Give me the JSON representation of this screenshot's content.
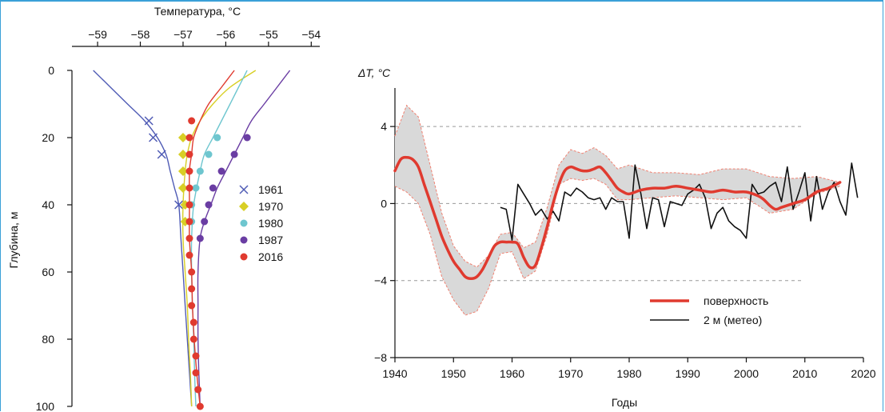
{
  "chart_data": [
    {
      "type": "scatter",
      "title": "",
      "xlabel": "Температура, °C",
      "ylabel": "Глубина, м",
      "xlim": [
        -59.6,
        -53.8
      ],
      "ylim": [
        0,
        100
      ],
      "xticks": [
        -59,
        -58,
        -57,
        -56,
        -55,
        -54
      ],
      "yticks": [
        0,
        20,
        40,
        60,
        80,
        100
      ],
      "legend_position": "right",
      "series": [
        {
          "name": "1961",
          "color": "#4f5bb5",
          "marker": "x",
          "points": [
            [
              -57.8,
              15
            ],
            [
              -57.7,
              20
            ],
            [
              -57.5,
              25
            ],
            [
              -57.1,
              40
            ]
          ],
          "curve": [
            [
              -59.1,
              0
            ],
            [
              -58.7,
              5
            ],
            [
              -58.3,
              10
            ],
            [
              -57.9,
              15
            ],
            [
              -57.6,
              20
            ],
            [
              -57.4,
              25
            ],
            [
              -57.3,
              30
            ],
            [
              -57.2,
              35
            ],
            [
              -57.1,
              40
            ],
            [
              -57.05,
              50
            ],
            [
              -57.0,
              60
            ],
            [
              -56.95,
              70
            ],
            [
              -56.9,
              80
            ],
            [
              -56.85,
              90
            ],
            [
              -56.8,
              100
            ]
          ]
        },
        {
          "name": "1970",
          "color": "#d8cf25",
          "marker": "diamond",
          "points": [
            [
              -57.0,
              20
            ],
            [
              -57.0,
              25
            ],
            [
              -57.0,
              30
            ],
            [
              -57.0,
              35
            ],
            [
              -56.95,
              40
            ],
            [
              -56.95,
              45
            ]
          ],
          "curve": [
            [
              -55.3,
              0
            ],
            [
              -55.9,
              5
            ],
            [
              -56.3,
              10
            ],
            [
              -56.6,
              15
            ],
            [
              -56.8,
              20
            ],
            [
              -56.9,
              25
            ],
            [
              -56.95,
              30
            ],
            [
              -57.0,
              40
            ],
            [
              -57.0,
              50
            ],
            [
              -56.95,
              60
            ],
            [
              -56.9,
              70
            ],
            [
              -56.87,
              80
            ],
            [
              -56.83,
              90
            ],
            [
              -56.8,
              100
            ]
          ]
        },
        {
          "name": "1980",
          "color": "#6ec6cf",
          "marker": "circle",
          "points": [
            [
              -56.2,
              20
            ],
            [
              -56.4,
              25
            ],
            [
              -56.6,
              30
            ],
            [
              -56.7,
              35
            ],
            [
              -56.8,
              40
            ],
            [
              -56.8,
              45
            ]
          ],
          "curve": [
            [
              -55.5,
              0
            ],
            [
              -55.7,
              5
            ],
            [
              -55.9,
              10
            ],
            [
              -56.1,
              15
            ],
            [
              -56.3,
              20
            ],
            [
              -56.5,
              25
            ],
            [
              -56.6,
              30
            ],
            [
              -56.75,
              40
            ],
            [
              -56.8,
              50
            ],
            [
              -56.8,
              60
            ],
            [
              -56.78,
              70
            ],
            [
              -56.75,
              80
            ],
            [
              -56.73,
              90
            ],
            [
              -56.7,
              100
            ]
          ]
        },
        {
          "name": "1987",
          "color": "#6a3da3",
          "marker": "circle",
          "points": [
            [
              -55.5,
              20
            ],
            [
              -55.8,
              25
            ],
            [
              -56.1,
              30
            ],
            [
              -56.3,
              35
            ],
            [
              -56.4,
              40
            ],
            [
              -56.5,
              45
            ],
            [
              -56.6,
              50
            ]
          ],
          "curve": [
            [
              -54.5,
              0
            ],
            [
              -54.8,
              5
            ],
            [
              -55.1,
              10
            ],
            [
              -55.4,
              15
            ],
            [
              -55.6,
              20
            ],
            [
              -55.8,
              25
            ],
            [
              -56.0,
              30
            ],
            [
              -56.2,
              35
            ],
            [
              -56.35,
              40
            ],
            [
              -56.5,
              45
            ],
            [
              -56.6,
              50
            ],
            [
              -56.65,
              60
            ],
            [
              -56.65,
              70
            ],
            [
              -56.65,
              80
            ],
            [
              -56.63,
              90
            ],
            [
              -56.6,
              100
            ]
          ]
        },
        {
          "name": "2016",
          "color": "#e03a2f",
          "marker": "circle",
          "points": [
            [
              -56.8,
              15
            ],
            [
              -56.85,
              20
            ],
            [
              -56.85,
              25
            ],
            [
              -56.85,
              30
            ],
            [
              -56.85,
              35
            ],
            [
              -56.85,
              40
            ],
            [
              -56.85,
              45
            ],
            [
              -56.85,
              50
            ],
            [
              -56.85,
              55
            ],
            [
              -56.8,
              60
            ],
            [
              -56.8,
              65
            ],
            [
              -56.8,
              70
            ],
            [
              -56.75,
              75
            ],
            [
              -56.75,
              80
            ],
            [
              -56.7,
              85
            ],
            [
              -56.7,
              90
            ],
            [
              -56.65,
              95
            ],
            [
              -56.6,
              100
            ]
          ],
          "curve": [
            [
              -55.8,
              0
            ],
            [
              -56.1,
              5
            ],
            [
              -56.4,
              10
            ],
            [
              -56.6,
              15
            ],
            [
              -56.75,
              20
            ],
            [
              -56.8,
              25
            ],
            [
              -56.85,
              30
            ],
            [
              -56.85,
              40
            ],
            [
              -56.85,
              50
            ],
            [
              -56.8,
              60
            ],
            [
              -56.78,
              70
            ],
            [
              -56.74,
              80
            ],
            [
              -56.68,
              90
            ],
            [
              -56.6,
              100
            ]
          ]
        }
      ]
    },
    {
      "type": "line",
      "title": "",
      "xlabel": "Годы",
      "ylabel": "ΔT, °C",
      "xlim": [
        1940,
        2020
      ],
      "ylim": [
        -8,
        6
      ],
      "xticks": [
        1940,
        1950,
        1960,
        1970,
        1980,
        1990,
        2000,
        2010,
        2020
      ],
      "yticks": [
        -8,
        -4,
        0,
        4
      ],
      "grid": "dashed at 4, 0, -4",
      "legend_position": "bottom-right",
      "band": {
        "color": "#d9d9d9",
        "edge_color": "#f08070",
        "upper": [
          [
            1940,
            3.5
          ],
          [
            1942,
            5.1
          ],
          [
            1944,
            4.5
          ],
          [
            1946,
            2.0
          ],
          [
            1948,
            -0.5
          ],
          [
            1950,
            -2.2
          ],
          [
            1952,
            -3.0
          ],
          [
            1954,
            -3.3
          ],
          [
            1956,
            -2.7
          ],
          [
            1958,
            -1.6
          ],
          [
            1960,
            -1.5
          ],
          [
            1962,
            -2.3
          ],
          [
            1964,
            -2.0
          ],
          [
            1966,
            -0.2
          ],
          [
            1968,
            2.0
          ],
          [
            1970,
            2.8
          ],
          [
            1972,
            2.6
          ],
          [
            1974,
            2.9
          ],
          [
            1976,
            2.5
          ],
          [
            1978,
            1.8
          ],
          [
            1980,
            2.0
          ],
          [
            1984,
            1.6
          ],
          [
            1988,
            1.6
          ],
          [
            1992,
            1.5
          ],
          [
            1996,
            1.8
          ],
          [
            2000,
            1.8
          ],
          [
            2004,
            1.4
          ],
          [
            2008,
            1.3
          ],
          [
            2012,
            1.4
          ],
          [
            2016,
            1.1
          ]
        ],
        "lower": [
          [
            1940,
            0.9
          ],
          [
            1942,
            0.6
          ],
          [
            1944,
            0.0
          ],
          [
            1946,
            -1.6
          ],
          [
            1948,
            -3.8
          ],
          [
            1950,
            -5.0
          ],
          [
            1952,
            -5.8
          ],
          [
            1954,
            -5.6
          ],
          [
            1956,
            -4.4
          ],
          [
            1958,
            -2.6
          ],
          [
            1960,
            -2.5
          ],
          [
            1962,
            -3.9
          ],
          [
            1964,
            -3.5
          ],
          [
            1966,
            -1.6
          ],
          [
            1968,
            1.0
          ],
          [
            1970,
            1.3
          ],
          [
            1972,
            1.2
          ],
          [
            1974,
            1.3
          ],
          [
            1976,
            1.0
          ],
          [
            1978,
            0.2
          ],
          [
            1980,
            0.2
          ],
          [
            1984,
            0.3
          ],
          [
            1988,
            0.4
          ],
          [
            1992,
            0.3
          ],
          [
            1996,
            0.2
          ],
          [
            2000,
            0.3
          ],
          [
            2004,
            -0.5
          ],
          [
            2008,
            -0.3
          ],
          [
            2012,
            0.5
          ],
          [
            2016,
            0.9
          ]
        ]
      },
      "series": [
        {
          "name": "поверхность",
          "color": "#e03a2f",
          "x": [
            1940,
            1941,
            1942,
            1943,
            1944,
            1945,
            1946,
            1947,
            1948,
            1949,
            1950,
            1951,
            1952,
            1953,
            1954,
            1955,
            1956,
            1957,
            1958,
            1959,
            1960,
            1961,
            1962,
            1963,
            1964,
            1965,
            1966,
            1967,
            1968,
            1969,
            1970,
            1971,
            1972,
            1973,
            1974,
            1975,
            1976,
            1977,
            1978,
            1979,
            1980,
            1982,
            1984,
            1986,
            1988,
            1990,
            1992,
            1994,
            1996,
            1998,
            2000,
            2002,
            2003,
            2004,
            2005,
            2006,
            2008,
            2010,
            2012,
            2014,
            2016
          ],
          "y": [
            1.7,
            2.3,
            2.4,
            2.3,
            1.9,
            1.0,
            0.1,
            -0.8,
            -1.7,
            -2.4,
            -3.0,
            -3.4,
            -3.8,
            -3.9,
            -3.8,
            -3.4,
            -2.8,
            -2.2,
            -2.0,
            -2.0,
            -2.0,
            -2.1,
            -2.8,
            -3.3,
            -3.2,
            -2.3,
            -1.2,
            0.0,
            1.0,
            1.7,
            1.9,
            1.8,
            1.7,
            1.7,
            1.8,
            1.9,
            1.6,
            1.2,
            0.8,
            0.6,
            0.5,
            0.7,
            0.8,
            0.8,
            0.9,
            0.8,
            0.7,
            0.6,
            0.7,
            0.6,
            0.6,
            0.4,
            0.2,
            -0.1,
            -0.3,
            -0.2,
            0.0,
            0.2,
            0.6,
            0.8,
            1.1
          ]
        },
        {
          "name": "2 м (метео)",
          "color": "#111111",
          "x": [
            1958,
            1959,
            1960,
            1961,
            1962,
            1963,
            1964,
            1965,
            1966,
            1967,
            1968,
            1969,
            1970,
            1971,
            1972,
            1973,
            1974,
            1975,
            1976,
            1977,
            1978,
            1979,
            1980,
            1981,
            1982,
            1983,
            1984,
            1985,
            1986,
            1987,
            1988,
            1989,
            1990,
            1991,
            1992,
            1993,
            1994,
            1995,
            1996,
            1997,
            1998,
            1999,
            2000,
            2001,
            2002,
            2003,
            2004,
            2005,
            2006,
            2007,
            2008,
            2009,
            2010,
            2011,
            2012,
            2013,
            2014,
            2015,
            2016,
            2017,
            2018,
            2019
          ],
          "y": [
            -0.2,
            -0.3,
            -1.9,
            1.0,
            0.5,
            0.0,
            -0.6,
            -0.3,
            -0.8,
            -0.4,
            -0.9,
            0.6,
            0.4,
            0.8,
            0.6,
            0.3,
            0.2,
            0.3,
            -0.3,
            0.3,
            0.1,
            0.1,
            -1.8,
            2.0,
            0.5,
            -1.3,
            0.3,
            0.2,
            -1.2,
            0.1,
            0.0,
            -0.1,
            0.5,
            0.7,
            1.0,
            0.3,
            -1.3,
            -0.5,
            -0.2,
            -0.9,
            -1.2,
            -1.4,
            -1.8,
            1.0,
            0.5,
            0.6,
            0.9,
            1.1,
            0.1,
            1.9,
            -0.3,
            0.6,
            1.6,
            -0.9,
            1.4,
            -0.3,
            0.6,
            1.1,
            0.1,
            -0.6,
            2.1,
            0.3
          ]
        }
      ]
    }
  ]
}
